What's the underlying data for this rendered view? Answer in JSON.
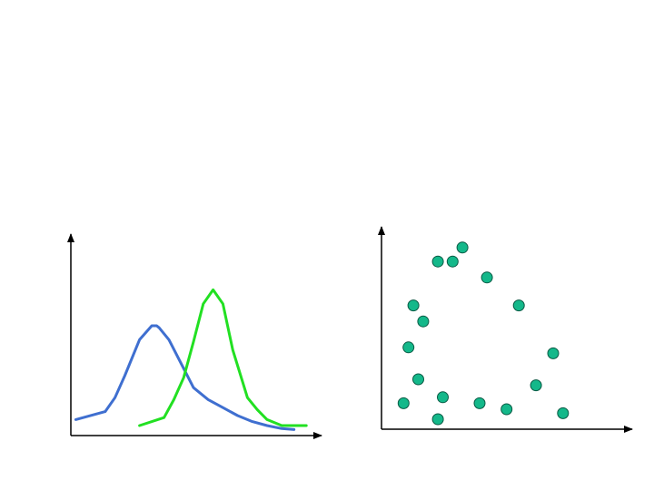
{
  "colors": {
    "background": "#ffffff",
    "axis": "#000000",
    "blue_curve": "#3f6fd0",
    "green_curve": "#22e022",
    "scatter_fill": "#14b88a",
    "scatter_stroke": "#0a5a44"
  },
  "chart_data": [
    {
      "type": "line",
      "title": "",
      "xlabel": "",
      "ylabel": "",
      "xlim": [
        0,
        100
      ],
      "ylim": [
        0,
        100
      ],
      "grid": false,
      "legend": "none",
      "series": [
        {
          "color": "#3f6fd0",
          "x": [
            2,
            14,
            18,
            22,
            28,
            33,
            35,
            36,
            40,
            45,
            50,
            56,
            62,
            68,
            74,
            80,
            86,
            91
          ],
          "y": [
            8,
            12,
            19,
            30,
            48,
            55,
            55,
            54,
            48,
            36,
            24,
            18,
            14,
            10,
            7,
            5,
            3.5,
            3
          ]
        },
        {
          "color": "#22e022",
          "x": [
            28,
            38,
            42,
            46,
            50,
            54,
            58,
            62,
            66,
            70,
            72,
            76,
            80,
            86,
            96
          ],
          "y": [
            5,
            9,
            18,
            29,
            47,
            66,
            73,
            66,
            43,
            27,
            19,
            13,
            8,
            5,
            5
          ]
        }
      ]
    },
    {
      "type": "scatter",
      "title": "",
      "xlabel": "",
      "ylabel": "",
      "xlim": [
        0,
        100
      ],
      "ylim": [
        0,
        100
      ],
      "grid": false,
      "legend": "none",
      "points": [
        {
          "x": 23,
          "y": 84
        },
        {
          "x": 29,
          "y": 84
        },
        {
          "x": 33,
          "y": 91
        },
        {
          "x": 43,
          "y": 76
        },
        {
          "x": 13,
          "y": 62
        },
        {
          "x": 17,
          "y": 54
        },
        {
          "x": 56,
          "y": 62
        },
        {
          "x": 11,
          "y": 41
        },
        {
          "x": 15,
          "y": 25
        },
        {
          "x": 70,
          "y": 38
        },
        {
          "x": 9,
          "y": 13
        },
        {
          "x": 25,
          "y": 16
        },
        {
          "x": 40,
          "y": 13
        },
        {
          "x": 51,
          "y": 10
        },
        {
          "x": 63,
          "y": 22
        },
        {
          "x": 23,
          "y": 5
        },
        {
          "x": 74,
          "y": 8
        }
      ]
    }
  ]
}
